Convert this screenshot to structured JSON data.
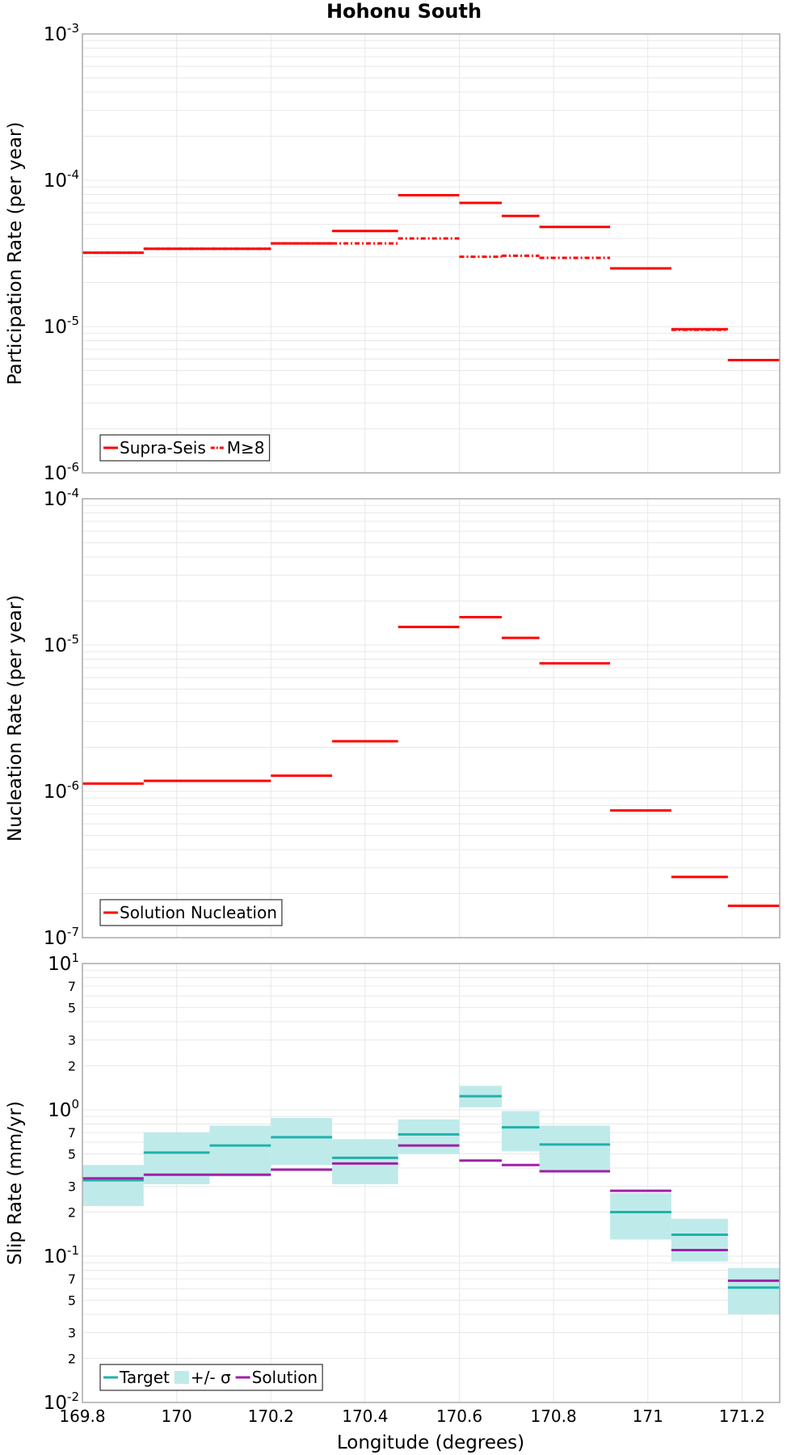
{
  "title": "Hohonu South",
  "xaxis": {
    "label": "Longitude (degrees)",
    "range": [
      169.8,
      171.28
    ],
    "ticks": [
      169.8,
      170,
      170.2,
      170.4,
      170.6,
      170.8,
      171,
      171.2
    ],
    "tick_labels": [
      "169.8",
      "170",
      "170.2",
      "170.4",
      "170.6",
      "170.8",
      "171",
      "171.2"
    ]
  },
  "colors": {
    "supra_seis": "#ff0000",
    "target": "#20b2aa",
    "sigma_fill": "#bfeaea",
    "solution": "#a020a8",
    "grid": "#e8e8e8",
    "frame": "#aaaaaa"
  },
  "chart_data": [
    {
      "type": "line",
      "style": "step-segments",
      "ylabel": "Participation Rate (per year)",
      "yscale": "log",
      "ylim": [
        1e-06,
        0.001
      ],
      "major_ticks": [
        {
          "value": 0.001,
          "base": "10",
          "exp": "-3"
        },
        {
          "value": 0.0001,
          "base": "10",
          "exp": "-4"
        },
        {
          "value": 1e-05,
          "base": "10",
          "exp": "-5"
        },
        {
          "value": 1e-06,
          "base": "10",
          "exp": "-6"
        }
      ],
      "minor_tick_labels": [],
      "grid": true,
      "legend": {
        "placement": "bottom-left",
        "entries": [
          "Supra-Seis",
          "M≥8"
        ]
      },
      "series": [
        {
          "name": "Supra-Seis",
          "dash": "solid",
          "color": "#ff0000",
          "segments": [
            {
              "x0": 169.8,
              "x1": 169.93,
              "y": 3.2e-05
            },
            {
              "x0": 169.93,
              "x1": 170.2,
              "y": 3.4e-05
            },
            {
              "x0": 170.2,
              "x1": 170.33,
              "y": 3.7e-05
            },
            {
              "x0": 170.33,
              "x1": 170.47,
              "y": 4.5e-05
            },
            {
              "x0": 170.47,
              "x1": 170.6,
              "y": 7.9e-05
            },
            {
              "x0": 170.6,
              "x1": 170.69,
              "y": 7e-05
            },
            {
              "x0": 170.69,
              "x1": 170.77,
              "y": 5.7e-05
            },
            {
              "x0": 170.77,
              "x1": 170.92,
              "y": 4.8e-05
            },
            {
              "x0": 170.92,
              "x1": 171.05,
              "y": 2.5e-05
            },
            {
              "x0": 171.05,
              "x1": 171.17,
              "y": 9.6e-06
            },
            {
              "x0": 171.17,
              "x1": 171.28,
              "y": 5.9e-06
            }
          ]
        },
        {
          "name": "M≥8",
          "dash": "dashdot",
          "color": "#ff0000",
          "segments": [
            {
              "x0": 169.8,
              "x1": 169.93,
              "y": 3.2e-05
            },
            {
              "x0": 169.93,
              "x1": 170.2,
              "y": 3.4e-05
            },
            {
              "x0": 170.2,
              "x1": 170.33,
              "y": 3.7e-05
            },
            {
              "x0": 170.33,
              "x1": 170.47,
              "y": 3.7e-05
            },
            {
              "x0": 170.47,
              "x1": 170.6,
              "y": 4e-05
            },
            {
              "x0": 170.6,
              "x1": 170.69,
              "y": 3e-05
            },
            {
              "x0": 170.69,
              "x1": 170.77,
              "y": 3.05e-05
            },
            {
              "x0": 170.77,
              "x1": 170.92,
              "y": 2.95e-05
            },
            {
              "x0": 170.92,
              "x1": 171.05,
              "y": 2.5e-05
            },
            {
              "x0": 171.05,
              "x1": 171.17,
              "y": 9.5e-06
            },
            {
              "x0": 171.17,
              "x1": 171.28,
              "y": 5.9e-06
            }
          ]
        }
      ]
    },
    {
      "type": "line",
      "style": "step-segments",
      "ylabel": "Nucleation Rate (per year)",
      "yscale": "log",
      "ylim": [
        1e-07,
        0.0001
      ],
      "major_ticks": [
        {
          "value": 0.0001,
          "base": "10",
          "exp": "-4"
        },
        {
          "value": 1e-05,
          "base": "10",
          "exp": "-5"
        },
        {
          "value": 1e-06,
          "base": "10",
          "exp": "-6"
        },
        {
          "value": 1e-07,
          "base": "10",
          "exp": "-7"
        }
      ],
      "minor_tick_labels": [],
      "grid": true,
      "legend": {
        "placement": "bottom-left",
        "entries": [
          "Solution Nucleation"
        ]
      },
      "series": [
        {
          "name": "Solution Nucleation",
          "dash": "solid",
          "color": "#ff0000",
          "segments": [
            {
              "x0": 169.8,
              "x1": 169.93,
              "y": 1.13e-06
            },
            {
              "x0": 169.93,
              "x1": 170.2,
              "y": 1.18e-06
            },
            {
              "x0": 170.2,
              "x1": 170.33,
              "y": 1.28e-06
            },
            {
              "x0": 170.33,
              "x1": 170.47,
              "y": 2.2e-06
            },
            {
              "x0": 170.47,
              "x1": 170.6,
              "y": 1.33e-05
            },
            {
              "x0": 170.6,
              "x1": 170.69,
              "y": 1.55e-05
            },
            {
              "x0": 170.69,
              "x1": 170.77,
              "y": 1.12e-05
            },
            {
              "x0": 170.77,
              "x1": 170.92,
              "y": 7.5e-06
            },
            {
              "x0": 170.92,
              "x1": 171.05,
              "y": 7.4e-07
            },
            {
              "x0": 171.05,
              "x1": 171.17,
              "y": 2.6e-07
            },
            {
              "x0": 171.17,
              "x1": 171.28,
              "y": 1.65e-07
            }
          ]
        }
      ]
    },
    {
      "type": "line",
      "style": "step-segments",
      "ylabel": "Slip Rate (mm/yr)",
      "yscale": "log",
      "ylim": [
        0.01,
        10
      ],
      "major_ticks": [
        {
          "value": 10,
          "base": "10",
          "exp": "1"
        },
        {
          "value": 1,
          "base": "10",
          "exp": "0"
        },
        {
          "value": 0.1,
          "base": "10",
          "exp": "-1"
        },
        {
          "value": 0.01,
          "base": "10",
          "exp": "-2"
        }
      ],
      "minor_tick_labels": [
        {
          "value": 7,
          "label": "7"
        },
        {
          "value": 5,
          "label": "5"
        },
        {
          "value": 3,
          "label": "3"
        },
        {
          "value": 2,
          "label": "2"
        },
        {
          "value": 0.7,
          "label": "7"
        },
        {
          "value": 0.5,
          "label": "5"
        },
        {
          "value": 0.3,
          "label": "3"
        },
        {
          "value": 0.2,
          "label": "2"
        },
        {
          "value": 0.07,
          "label": "7"
        },
        {
          "value": 0.05,
          "label": "5"
        },
        {
          "value": 0.03,
          "label": "3"
        },
        {
          "value": 0.02,
          "label": "2"
        }
      ],
      "grid": true,
      "legend": {
        "placement": "bottom-left",
        "entries": [
          "Target",
          "+/- σ",
          "Solution"
        ]
      },
      "bands": [
        {
          "name": "+/- σ",
          "color": "#bfeaea",
          "segments": [
            {
              "x0": 169.8,
              "x1": 169.93,
              "lo": 0.22,
              "hi": 0.42
            },
            {
              "x0": 169.93,
              "x1": 170.07,
              "lo": 0.31,
              "hi": 0.7
            },
            {
              "x0": 170.07,
              "x1": 170.2,
              "lo": 0.35,
              "hi": 0.78
            },
            {
              "x0": 170.2,
              "x1": 170.33,
              "lo": 0.42,
              "hi": 0.88
            },
            {
              "x0": 170.33,
              "x1": 170.47,
              "lo": 0.31,
              "hi": 0.63
            },
            {
              "x0": 170.47,
              "x1": 170.6,
              "lo": 0.5,
              "hi": 0.86
            },
            {
              "x0": 170.6,
              "x1": 170.69,
              "lo": 1.04,
              "hi": 1.46
            },
            {
              "x0": 170.69,
              "x1": 170.77,
              "lo": 0.52,
              "hi": 0.98
            },
            {
              "x0": 170.77,
              "x1": 170.92,
              "lo": 0.38,
              "hi": 0.78
            },
            {
              "x0": 170.92,
              "x1": 171.05,
              "lo": 0.13,
              "hi": 0.27
            },
            {
              "x0": 171.05,
              "x1": 171.17,
              "lo": 0.092,
              "hi": 0.18
            },
            {
              "x0": 171.17,
              "x1": 171.28,
              "lo": 0.04,
              "hi": 0.083
            }
          ]
        }
      ],
      "series": [
        {
          "name": "Target",
          "dash": "solid",
          "color": "#20b2aa",
          "segments": [
            {
              "x0": 169.8,
              "x1": 169.93,
              "y": 0.33
            },
            {
              "x0": 169.93,
              "x1": 170.07,
              "y": 0.51
            },
            {
              "x0": 170.07,
              "x1": 170.2,
              "y": 0.57
            },
            {
              "x0": 170.2,
              "x1": 170.33,
              "y": 0.65
            },
            {
              "x0": 170.33,
              "x1": 170.47,
              "y": 0.47
            },
            {
              "x0": 170.47,
              "x1": 170.6,
              "y": 0.68
            },
            {
              "x0": 170.6,
              "x1": 170.69,
              "y": 1.24
            },
            {
              "x0": 170.69,
              "x1": 170.77,
              "y": 0.76
            },
            {
              "x0": 170.77,
              "x1": 170.92,
              "y": 0.58
            },
            {
              "x0": 170.92,
              "x1": 171.05,
              "y": 0.2
            },
            {
              "x0": 171.05,
              "x1": 171.17,
              "y": 0.14
            },
            {
              "x0": 171.17,
              "x1": 171.28,
              "y": 0.061
            }
          ]
        },
        {
          "name": "Solution",
          "dash": "solid",
          "color": "#a020a8",
          "segments": [
            {
              "x0": 169.8,
              "x1": 169.93,
              "y": 0.34
            },
            {
              "x0": 169.93,
              "x1": 170.2,
              "y": 0.36
            },
            {
              "x0": 170.2,
              "x1": 170.33,
              "y": 0.39
            },
            {
              "x0": 170.33,
              "x1": 170.47,
              "y": 0.43
            },
            {
              "x0": 170.47,
              "x1": 170.6,
              "y": 0.57
            },
            {
              "x0": 170.6,
              "x1": 170.69,
              "y": 0.45
            },
            {
              "x0": 170.69,
              "x1": 170.77,
              "y": 0.42
            },
            {
              "x0": 170.77,
              "x1": 170.92,
              "y": 0.38
            },
            {
              "x0": 170.92,
              "x1": 171.05,
              "y": 0.28
            },
            {
              "x0": 171.05,
              "x1": 171.17,
              "y": 0.11
            },
            {
              "x0": 171.17,
              "x1": 171.28,
              "y": 0.068
            }
          ]
        }
      ]
    }
  ]
}
